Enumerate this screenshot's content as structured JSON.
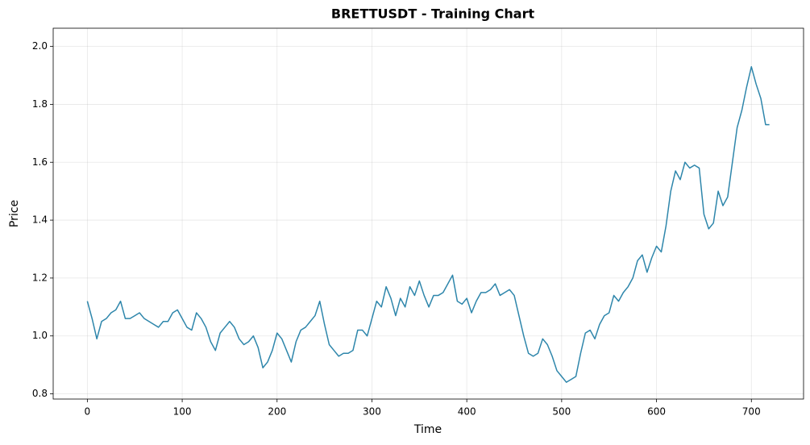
{
  "chart_data": {
    "type": "line",
    "title": "BRETTUSDT - Training Chart",
    "x_label": "Time",
    "y_label": "Price",
    "x": [
      0,
      5,
      10,
      15,
      20,
      25,
      30,
      35,
      40,
      45,
      50,
      55,
      60,
      65,
      70,
      75,
      80,
      85,
      90,
      95,
      100,
      105,
      110,
      115,
      120,
      125,
      130,
      135,
      140,
      145,
      150,
      155,
      160,
      165,
      170,
      175,
      180,
      185,
      190,
      195,
      200,
      205,
      210,
      215,
      220,
      225,
      230,
      235,
      240,
      245,
      250,
      255,
      260,
      265,
      270,
      275,
      280,
      285,
      290,
      295,
      300,
      305,
      310,
      315,
      320,
      325,
      330,
      335,
      340,
      345,
      350,
      355,
      360,
      365,
      370,
      375,
      380,
      385,
      390,
      395,
      400,
      405,
      410,
      415,
      420,
      425,
      430,
      435,
      440,
      445,
      450,
      455,
      460,
      465,
      470,
      475,
      480,
      485,
      490,
      495,
      500,
      505,
      510,
      515,
      520,
      525,
      530,
      535,
      540,
      545,
      550,
      555,
      560,
      565,
      570,
      575,
      580,
      585,
      590,
      595,
      600,
      605,
      610,
      615,
      620,
      625,
      630,
      635,
      640,
      645,
      650,
      655,
      660,
      665,
      670,
      675,
      680,
      685,
      690,
      695,
      700,
      705,
      710,
      715,
      719
    ],
    "series": [
      {
        "name": "Price",
        "color": "#2e86ab",
        "values": [
          1.12,
          1.06,
          0.99,
          1.05,
          1.06,
          1.08,
          1.09,
          1.12,
          1.06,
          1.06,
          1.07,
          1.08,
          1.06,
          1.05,
          1.04,
          1.03,
          1.05,
          1.05,
          1.08,
          1.09,
          1.06,
          1.03,
          1.02,
          1.08,
          1.06,
          1.03,
          0.98,
          0.95,
          1.01,
          1.03,
          1.05,
          1.03,
          0.99,
          0.97,
          0.98,
          1.0,
          0.96,
          0.89,
          0.91,
          0.95,
          1.01,
          0.99,
          0.95,
          0.91,
          0.98,
          1.02,
          1.03,
          1.05,
          1.07,
          1.12,
          1.04,
          0.97,
          0.95,
          0.93,
          0.94,
          0.94,
          0.95,
          1.02,
          1.02,
          1.0,
          1.06,
          1.12,
          1.1,
          1.17,
          1.13,
          1.07,
          1.13,
          1.1,
          1.17,
          1.14,
          1.19,
          1.14,
          1.1,
          1.14,
          1.14,
          1.15,
          1.18,
          1.21,
          1.12,
          1.11,
          1.13,
          1.08,
          1.12,
          1.15,
          1.15,
          1.16,
          1.18,
          1.14,
          1.15,
          1.16,
          1.14,
          1.07,
          1.0,
          0.94,
          0.93,
          0.94,
          0.99,
          0.97,
          0.93,
          0.88,
          0.86,
          0.84,
          0.85,
          0.86,
          0.94,
          1.01,
          1.02,
          0.99,
          1.04,
          1.07,
          1.08,
          1.14,
          1.12,
          1.15,
          1.17,
          1.2,
          1.26,
          1.28,
          1.22,
          1.27,
          1.31,
          1.29,
          1.38,
          1.5,
          1.57,
          1.54,
          1.6,
          1.58,
          1.59,
          1.58,
          1.42,
          1.37,
          1.39,
          1.5,
          1.45,
          1.48,
          1.6,
          1.72,
          1.78,
          1.86,
          1.93,
          1.87,
          1.82,
          1.73,
          1.73
        ]
      }
    ],
    "xlim": [
      -36,
      755
    ],
    "xticks": [
      0,
      100,
      200,
      300,
      400,
      500,
      600,
      700
    ],
    "ylim": [
      0.782,
      2.063
    ],
    "yticks": [
      0.8,
      {
        "value": 1.0,
        "label": "1.0"
      },
      1.2,
      1.4,
      1.6,
      1.8,
      {
        "value": 2.0,
        "label": "2.0"
      }
    ],
    "grid": true
  }
}
